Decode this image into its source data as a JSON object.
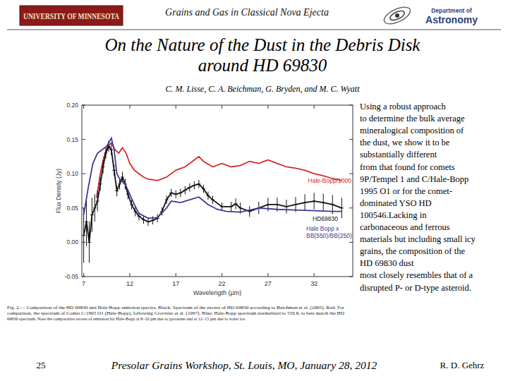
{
  "chart_data": {
    "type": "line",
    "x_label": "Wavelength (µm)",
    "y_label": "Flux Density (Jy)",
    "xlim": [
      6.8,
      36.2
    ],
    "ylim": [
      -0.05,
      0.2
    ],
    "xticks": [
      7,
      12,
      17,
      22,
      27,
      32
    ],
    "yticks": [
      {
        "value": 0.2,
        "label": "0.20"
      },
      0.15,
      {
        "value": 0.1,
        "label": "0.10"
      },
      0.05,
      {
        "value": 0,
        "label": "0.00"
      },
      -0.05
    ],
    "grid": false,
    "series": [
      {
        "name": "Hale-Bopp/1000",
        "color": "#d42a2a",
        "line_style": "solid",
        "x": [
          8.4,
          8.8,
          9.2,
          9.6,
          10.0,
          10.4,
          10.8,
          11.2,
          11.6,
          12.0,
          12.5,
          13.0,
          13.5,
          14.0,
          15.0,
          16.0,
          17.0,
          18.0,
          19.0,
          19.5,
          20.0,
          21.0,
          22.0,
          23.0,
          24.0,
          25.0,
          26.0,
          27.0,
          28.0,
          29.0,
          30.0,
          31.0,
          32.0,
          33.0,
          34.0,
          35.0
        ],
        "values": [
          0.065,
          0.1,
          0.125,
          0.14,
          0.145,
          0.135,
          0.13,
          0.138,
          0.13,
          0.115,
          0.105,
          0.1,
          0.095,
          0.092,
          0.09,
          0.095,
          0.105,
          0.11,
          0.12,
          0.125,
          0.118,
          0.11,
          0.115,
          0.11,
          0.112,
          0.118,
          0.115,
          0.12,
          0.115,
          0.11,
          0.108,
          0.105,
          0.1,
          0.097,
          0.093,
          0.09
        ]
      },
      {
        "name": "HD69830",
        "color": "#111111",
        "line_style": "solid",
        "marker": "plus",
        "x": [
          7.0,
          7.3,
          7.6,
          7.9,
          8.2,
          8.5,
          8.8,
          9.1,
          9.4,
          9.7,
          10.0,
          10.3,
          10.6,
          10.9,
          11.2,
          11.5,
          11.8,
          12.2,
          12.6,
          13.0,
          13.5,
          14.0,
          14.5,
          15.0,
          15.5,
          16.0,
          16.5,
          17.0,
          17.5,
          18.0,
          18.5,
          19.0,
          19.5,
          20.0,
          20.5,
          21.0,
          22.0,
          23.0,
          23.5,
          24.0,
          25.0,
          26.0,
          27.0,
          28.0,
          29.0,
          30.0,
          31.0,
          32.0,
          33.0,
          34.0,
          35.0
        ],
        "values": [
          0.01,
          0.03,
          0.0,
          0.04,
          0.05,
          0.06,
          0.085,
          0.11,
          0.13,
          0.14,
          0.135,
          0.105,
          0.075,
          0.085,
          0.095,
          0.085,
          0.07,
          0.055,
          0.045,
          0.038,
          0.033,
          0.03,
          0.032,
          0.035,
          0.045,
          0.062,
          0.072,
          0.07,
          0.072,
          0.076,
          0.08,
          0.083,
          0.085,
          0.078,
          0.068,
          0.062,
          0.052,
          0.052,
          0.056,
          0.05,
          0.045,
          0.05,
          0.055,
          0.055,
          0.052,
          0.055,
          0.058,
          0.06,
          0.058,
          0.055,
          0.05
        ],
        "errors": [
          0.04,
          0.035,
          0.03,
          0.025,
          0.02,
          0.015,
          0.01,
          0.01,
          0.008,
          0.008,
          0.008,
          0.008,
          0.008,
          0.008,
          0.008,
          0.008,
          0.007,
          0.007,
          0.007,
          0.006,
          0.006,
          0.006,
          0.006,
          0.006,
          0.006,
          0.006,
          0.006,
          0.006,
          0.006,
          0.006,
          0.006,
          0.006,
          0.006,
          0.006,
          0.006,
          0.006,
          0.006,
          0.007,
          0.008,
          0.008,
          0.008,
          0.009,
          0.01,
          0.01,
          0.01,
          0.011,
          0.012,
          0.012,
          0.013,
          0.014,
          0.015
        ]
      },
      {
        "name": "Hale Bopp x BB(550)/BB(250)",
        "color": "#3a3a9a",
        "line_style": "solid",
        "x": [
          7.0,
          7.5,
          8.0,
          8.5,
          9.0,
          9.5,
          10.0,
          10.3,
          10.6,
          11.0,
          11.5,
          12.0,
          12.5,
          13.0,
          14.0,
          15.0,
          16.0,
          16.5,
          17.5,
          18.5,
          19.5,
          20.5,
          21.5,
          22.5,
          24.0,
          26.0,
          28.0,
          30.0,
          32.0,
          34.0,
          35.0
        ],
        "values": [
          0.04,
          0.08,
          0.115,
          0.13,
          0.135,
          0.14,
          0.152,
          0.135,
          0.1,
          0.09,
          0.085,
          0.07,
          0.055,
          0.042,
          0.035,
          0.036,
          0.05,
          0.06,
          0.058,
          0.062,
          0.066,
          0.055,
          0.048,
          0.045,
          0.044,
          0.05,
          0.048,
          0.047,
          0.046,
          0.045,
          0.045
        ]
      }
    ]
  },
  "slide": {
    "university": "UNIVERSITY OF MINNESOTA",
    "header": "Grains and Gas in Classical Nova Ejecta",
    "department": [
      "Department of",
      "Astronomy"
    ],
    "title": [
      "On the Nature of the Dust in the Debris Disk",
      "around HD 69830"
    ],
    "authors": "C. M. Lisse, C. A. Beichman, G. Bryden, and M. C. Wyatt",
    "body": [
      "Using a robust approach",
      "to determine the bulk average",
      "mineralogical composition of",
      "the dust, we show it to be",
      "substantially different",
      "from that found for comets",
      "9P/Tempel 1 and C/Hale-Bopp",
      "1995 O1 or for the comet-",
      "dominated YSO HD",
      "100546.Lacking in",
      "carbonaceous and ferrous",
      "materials but including small icy",
      "grains, the composition of the",
      "HD 69830 dust",
      "most closely resembles that of a",
      "disrupted P- or D-type asteroid."
    ],
    "caption": [
      "Fig. 2.— Comparison of the HD 69830 and Hale-Bopp emission spectra. Black: Spectrum of the excess of HD 69830 according to Beichman et al. (2005). Red: For",
      "comparison, the spectrum of Comet C/1995 O1 (Hale-Bopp), following Crovisier et al. (1997). Blue: Hale-Bopp spectrum normalized to 550 K to best match the HD",
      "69830 spectrum. Note the comparative excess of emission for Hale-Bopp at 8–10 µm due to pyroxene and at 12–15 µm due to water ice."
    ],
    "page_number": "25",
    "footer": "Presolar Grains Workshop, St. Louis, MO, January 28, 2012",
    "presenter": "R. D. Gehrz"
  }
}
